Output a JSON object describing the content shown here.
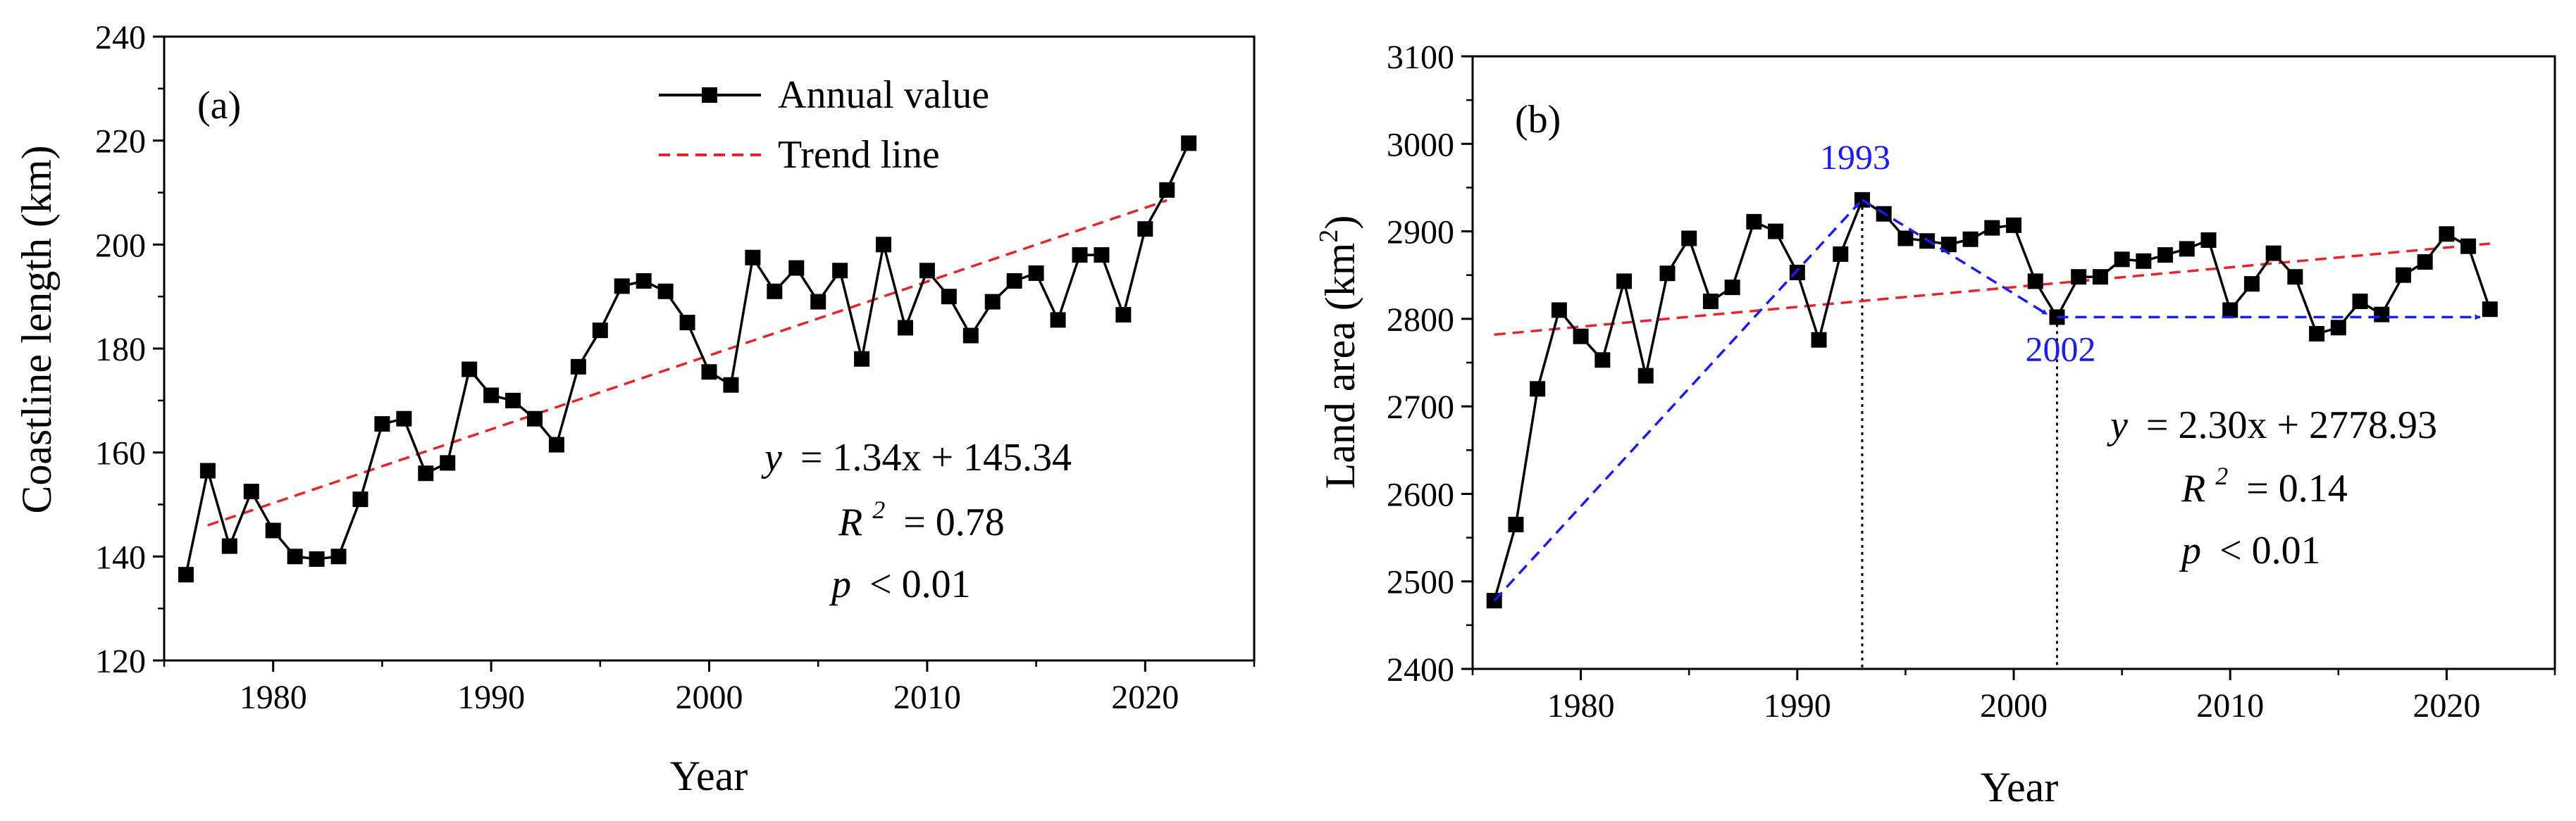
{
  "chart_data": [
    {
      "type": "line",
      "panel_label": "(a)",
      "xlabel": "Year",
      "ylabel": "Coastline length (km)",
      "xlim": [
        1975,
        2025
      ],
      "ylim": [
        120,
        240
      ],
      "xticks": [
        1980,
        1990,
        2000,
        2010,
        2020
      ],
      "yticks": [
        120,
        140,
        160,
        180,
        200,
        220,
        240
      ],
      "legend": [
        {
          "label": "Annual value",
          "style": "line-square",
          "color": "#000000"
        },
        {
          "label": "Trend line",
          "style": "dashed",
          "color": "#e8242a"
        }
      ],
      "x": [
        1976,
        1977,
        1978,
        1979,
        1980,
        1981,
        1982,
        1983,
        1984,
        1985,
        1986,
        1987,
        1988,
        1989,
        1990,
        1991,
        1992,
        1993,
        1994,
        1995,
        1996,
        1997,
        1998,
        1999,
        2000,
        2001,
        2002,
        2003,
        2004,
        2005,
        2006,
        2007,
        2008,
        2009,
        2010,
        2011,
        2012,
        2013,
        2014,
        2015,
        2016,
        2017,
        2018,
        2019,
        2020,
        2021,
        2022
      ],
      "series": [
        {
          "name": "Annual value",
          "values": [
            136.5,
            156.5,
            142,
            152.5,
            145,
            140,
            139.5,
            140,
            151,
            165.5,
            166.5,
            156,
            158,
            176,
            171,
            170,
            166.5,
            161.5,
            176.5,
            183.5,
            192,
            193,
            191,
            185,
            175.5,
            173,
            197.5,
            191,
            195.5,
            189,
            195,
            178,
            200,
            184,
            195,
            190,
            182.5,
            189,
            193,
            194.5,
            185.5,
            198,
            198,
            186.5,
            203,
            210.5,
            219.5
          ]
        }
      ],
      "trend": {
        "x": [
          1977,
          2021
        ],
        "y": [
          146,
          208.5
        ],
        "color": "#e8242a"
      },
      "annotation_lines": [
        {
          "lhs": "y",
          "rhs": "= 1.34x + 145.34"
        },
        {
          "lhs": "R",
          "sup": "2",
          "rhs": "= 0.78"
        },
        {
          "lhs": "p",
          "rhs": "< 0.01"
        }
      ]
    },
    {
      "type": "line",
      "panel_label": "(b)",
      "xlabel": "Year",
      "ylabel_main": "Land area (km",
      "ylabel_sup": "2",
      "ylabel_close": ")",
      "xlim": [
        1975,
        2025
      ],
      "ylim": [
        2400,
        3100
      ],
      "xticks": [
        1980,
        1990,
        2000,
        2010,
        2020
      ],
      "yticks": [
        2400,
        2500,
        2600,
        2700,
        2800,
        2900,
        3000,
        3100
      ],
      "x": [
        1976,
        1977,
        1978,
        1979,
        1980,
        1981,
        1982,
        1983,
        1984,
        1985,
        1986,
        1987,
        1988,
        1989,
        1990,
        1991,
        1992,
        1993,
        1994,
        1995,
        1996,
        1997,
        1998,
        1999,
        2000,
        2001,
        2002,
        2003,
        2004,
        2005,
        2006,
        2007,
        2008,
        2009,
        2010,
        2011,
        2012,
        2013,
        2014,
        2015,
        2016,
        2017,
        2018,
        2019,
        2020,
        2021,
        2022
      ],
      "series": [
        {
          "name": "Annual value",
          "values": [
            2478,
            2565,
            2720,
            2810,
            2780,
            2753,
            2843,
            2735,
            2852,
            2892,
            2820,
            2836,
            2911,
            2900,
            2853,
            2776,
            2874,
            2936,
            2920,
            2892,
            2889,
            2885,
            2891,
            2904,
            2907,
            2843,
            2802,
            2848,
            2848,
            2868,
            2866,
            2873,
            2880,
            2890,
            2810,
            2840,
            2875,
            2848,
            2783,
            2790,
            2820,
            2805,
            2850,
            2865,
            2897,
            2883,
            2811
          ]
        }
      ],
      "trend": {
        "x": [
          1976,
          2022
        ],
        "y": [
          2782,
          2886
        ],
        "color": "#e8242a"
      },
      "markers": [
        {
          "label": "1993",
          "x": 1993,
          "y": 2936,
          "color": "#1a1aff"
        },
        {
          "label": "2002",
          "x": 2002,
          "y": 2802,
          "color": "#1a1aff"
        }
      ],
      "arrows_color": "#1a1aff",
      "annotation_lines": [
        {
          "lhs": "y",
          "rhs": "= 2.30x + 2778.93"
        },
        {
          "lhs": "R",
          "sup": "2",
          "rhs": "= 0.14"
        },
        {
          "lhs": "p",
          "rhs": "< 0.01"
        }
      ]
    }
  ]
}
